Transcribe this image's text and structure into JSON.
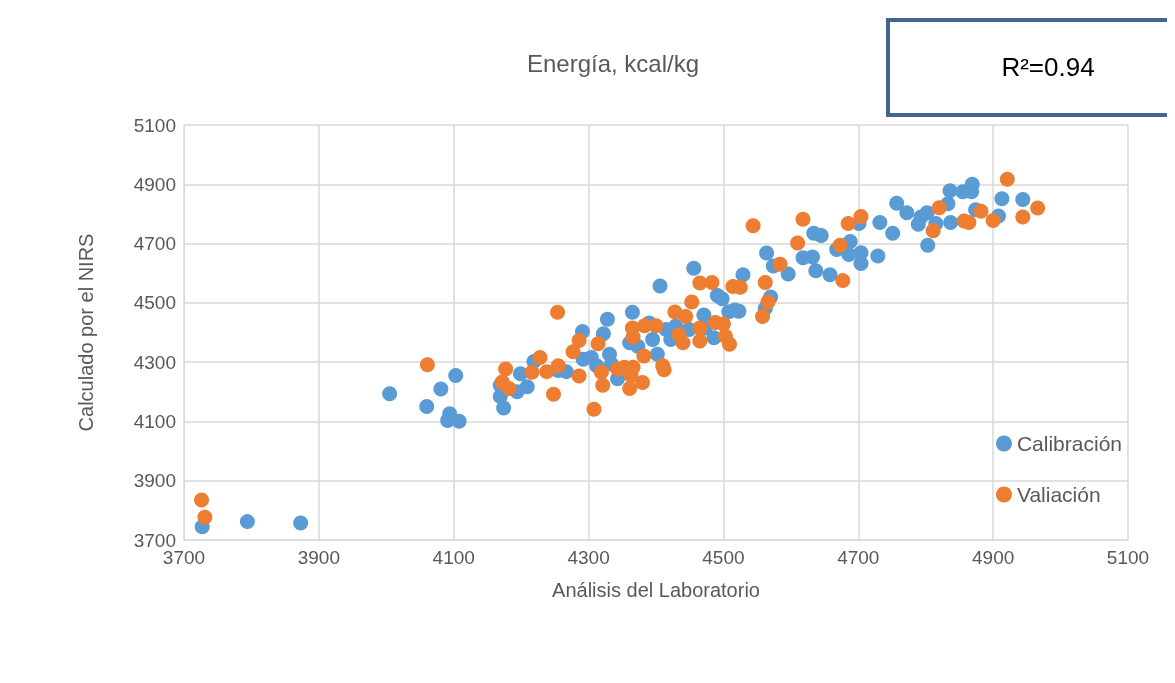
{
  "chart_data": {
    "type": "scatter",
    "title": "Energía, kcal/kg",
    "xlabel": "Análisis del Laboratorio",
    "ylabel": "Calculado por el NIRS",
    "annotations": [
      "R²=0.94"
    ],
    "xlim": [
      3700,
      5100
    ],
    "xticks": [
      3700,
      3900,
      4100,
      4300,
      4500,
      4700,
      4900,
      5100
    ],
    "ylim": [
      3700,
      5100
    ],
    "yticks": [
      3700,
      3900,
      4100,
      4300,
      4500,
      4700,
      4900,
      5100
    ],
    "grid": true,
    "legend": "right",
    "marker": "circle",
    "series": [
      {
        "name": "Calibración",
        "color": "#5b9bd5",
        "x": [
          3727,
          3794,
          3873,
          4103,
          4005,
          4081,
          4060,
          4094,
          4091,
          4108,
          4169,
          4174,
          4169,
          4194,
          4199,
          4209,
          4219,
          4255,
          4267,
          4291,
          4292,
          4304,
          4312,
          4322,
          4328,
          4331,
          4334,
          4343,
          4365,
          4361,
          4373,
          4390,
          4395,
          4402,
          4406,
          4415,
          4422,
          4429,
          4449,
          4456,
          4471,
          4473,
          4486,
          4491,
          4498,
          4508,
          4517,
          4529,
          4523,
          4562,
          4570,
          4564,
          4596,
          4574,
          4618,
          4632,
          4637,
          4634,
          4645,
          4658,
          4668,
          4686,
          4688,
          4704,
          4704,
          4701,
          4729,
          4732,
          4751,
          4757,
          4772,
          4789,
          4793,
          4802,
          4803,
          4815,
          4833,
          4836,
          4837,
          4855,
          4869,
          4868,
          4874,
          4908,
          4913,
          4944
        ],
        "values": [
          3745,
          3762,
          3757,
          4255,
          4193,
          4209,
          4150,
          4126,
          4103,
          4101,
          4222,
          4145,
          4184,
          4200,
          4261,
          4217,
          4302,
          4272,
          4268,
          4403,
          4310,
          4316,
          4288,
          4396,
          4445,
          4327,
          4294,
          4244,
          4468,
          4365,
          4354,
          4432,
          4376,
          4327,
          4557,
          4410,
          4376,
          4421,
          4410,
          4617,
          4459,
          4415,
          4382,
          4525,
          4514,
          4470,
          4476,
          4595,
          4472,
          4481,
          4520,
          4668,
          4597,
          4624,
          4652,
          4655,
          4608,
          4735,
          4727,
          4595,
          4680,
          4663,
          4707,
          4669,
          4633,
          4768,
          4658,
          4771,
          4735,
          4836,
          4804,
          4765,
          4790,
          4804,
          4694,
          4768,
          4834,
          4878,
          4771,
          4875,
          4900,
          4875,
          4814,
          4793,
          4851,
          4849
        ]
      },
      {
        "name": "Valiación",
        "color": "#ed7d31",
        "x": [
          3726,
          3731,
          4061,
          4177,
          4172,
          4182,
          4216,
          4228,
          4238,
          4248,
          4255,
          4254,
          4286,
          4277,
          4286,
          4308,
          4319,
          4321,
          4314,
          4343,
          4353,
          4366,
          4361,
          4380,
          4363,
          4365,
          4366,
          4383,
          4382,
          4400,
          4410,
          4412,
          4428,
          4434,
          4440,
          4444,
          4453,
          4465,
          4465,
          4465,
          4483,
          4488,
          4500,
          4503,
          4509,
          4514,
          4525,
          4558,
          4562,
          4566,
          4584,
          4544,
          4618,
          4610,
          4673,
          4677,
          4685,
          4704,
          4811,
          4820,
          4857,
          4864,
          4882,
          4900,
          4921,
          4944,
          4966
        ],
        "values": [
          3835,
          3777,
          4291,
          4277,
          4233,
          4211,
          4266,
          4316,
          4268,
          4192,
          4288,
          4468,
          4253,
          4335,
          4373,
          4141,
          4266,
          4222,
          4362,
          4277,
          4283,
          4283,
          4211,
          4231,
          4255,
          4415,
          4385,
          4423,
          4321,
          4423,
          4288,
          4274,
          4469,
          4393,
          4365,
          4454,
          4503,
          4567,
          4415,
          4371,
          4569,
          4434,
          4429,
          4387,
          4360,
          4555,
          4553,
          4454,
          4569,
          4503,
          4630,
          4760,
          4782,
          4702,
          4694,
          4575,
          4768,
          4791,
          4743,
          4821,
          4776,
          4771,
          4809,
          4778,
          4917,
          4790,
          4820
        ]
      }
    ]
  }
}
